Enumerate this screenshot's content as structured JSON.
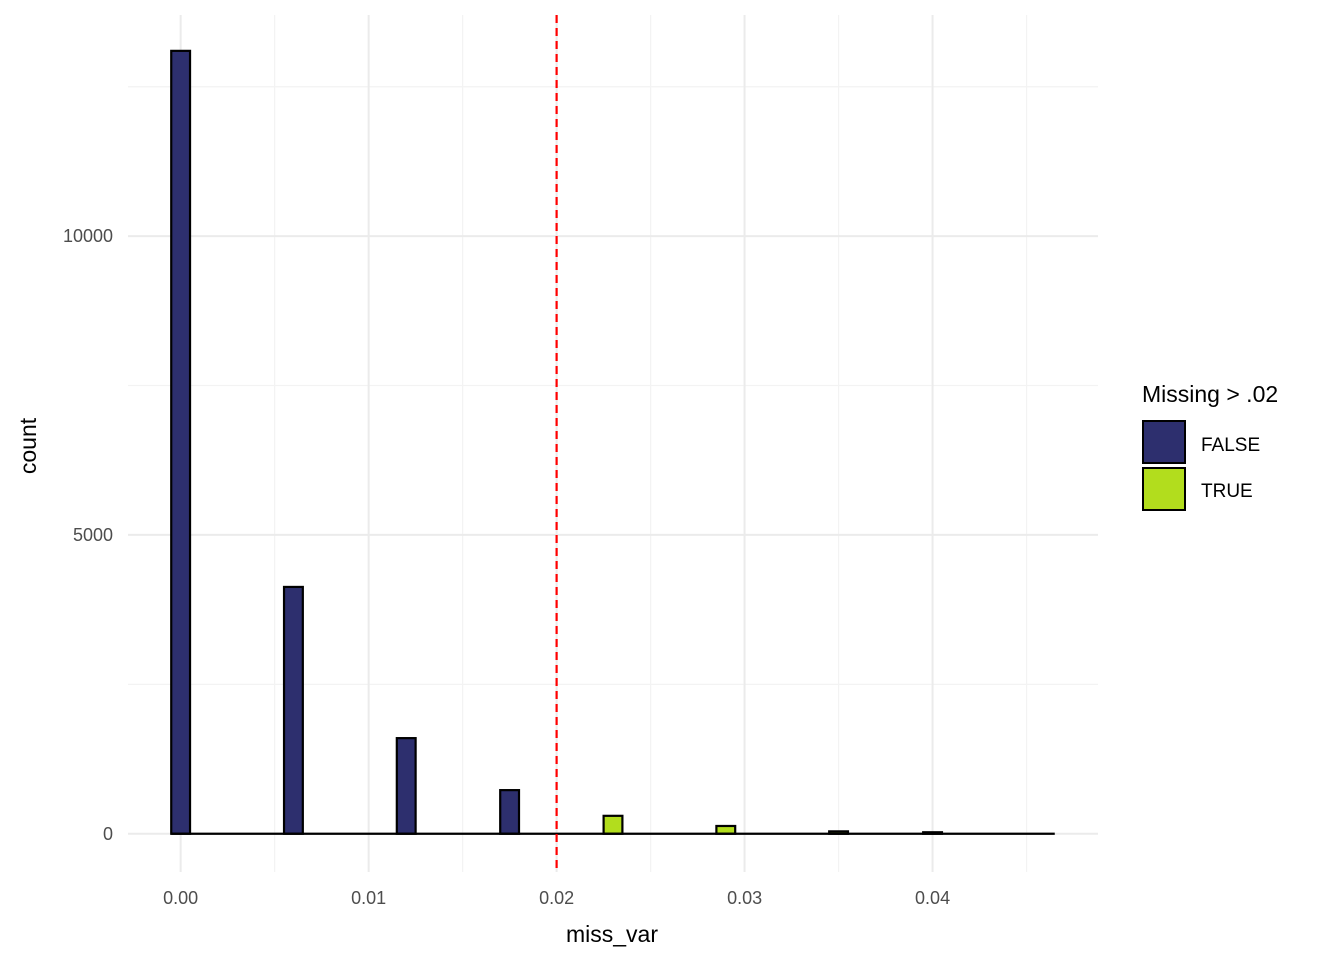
{
  "chart_data": {
    "type": "bar",
    "xlabel": "miss_var",
    "ylabel": "count",
    "xlim": [
      -0.0028,
      0.0488
    ],
    "ylim": [
      -640,
      13700
    ],
    "x_ticks": [
      {
        "value": 0.0,
        "label": "0.00"
      },
      {
        "value": 0.01,
        "label": "0.01"
      },
      {
        "value": 0.02,
        "label": "0.02"
      },
      {
        "value": 0.03,
        "label": "0.03"
      },
      {
        "value": 0.04,
        "label": "0.04"
      }
    ],
    "x_minor_ticks": [
      0.005,
      0.015,
      0.025,
      0.035,
      0.045
    ],
    "y_ticks": [
      {
        "value": 0,
        "label": "0"
      },
      {
        "value": 5000,
        "label": "5000"
      },
      {
        "value": 10000,
        "label": "10000"
      }
    ],
    "y_minor_ticks": [
      2500,
      7500,
      12500
    ],
    "bin_width": 0.001,
    "baseline_range": [
      -0.0005,
      0.0465
    ],
    "bars": [
      {
        "x": 0.0,
        "count": 13100,
        "group": "FALSE"
      },
      {
        "x": 0.006,
        "count": 4130,
        "group": "FALSE"
      },
      {
        "x": 0.012,
        "count": 1600,
        "group": "FALSE"
      },
      {
        "x": 0.0175,
        "count": 730,
        "group": "FALSE"
      },
      {
        "x": 0.023,
        "count": 300,
        "group": "TRUE"
      },
      {
        "x": 0.029,
        "count": 130,
        "group": "TRUE"
      },
      {
        "x": 0.035,
        "count": 40,
        "group": "TRUE"
      },
      {
        "x": 0.04,
        "count": 25,
        "group": "TRUE"
      }
    ],
    "reference_line": {
      "x": 0.02,
      "color": "#FF0000",
      "style": "dashed"
    },
    "legend": {
      "title": "Missing > .02",
      "position": "right",
      "entries": [
        {
          "label": "FALSE",
          "color": "#2D2F6E"
        },
        {
          "label": "TRUE",
          "color": "#B2DD1D"
        }
      ]
    },
    "colors": {
      "grid_major": "#EBEBEB",
      "grid_minor": "#F3F3F3",
      "bar_outline": "#000000"
    },
    "grid": true
  }
}
